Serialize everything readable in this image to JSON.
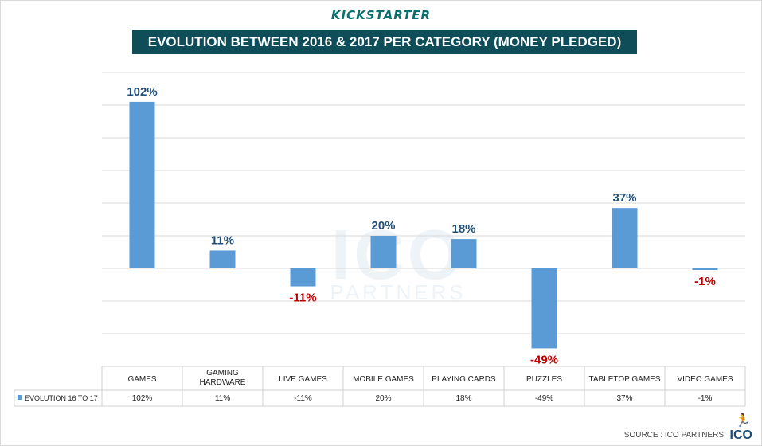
{
  "brand": "KICKSTARTER",
  "title": "EVOLUTION BETWEEN 2016 & 2017 PER CATEGORY (MONEY PLEDGED)",
  "watermark": {
    "big": "ICO",
    "small": "PARTNERS"
  },
  "source": "SOURCE : ICO PARTNERS",
  "logo_text": "ICO",
  "icons": {
    "logo": "running-man-icon",
    "legend": "legend-square-icon"
  },
  "colors": {
    "bar": "#5b9bd5",
    "positive_label": "#1f4e79",
    "negative_label": "#c00000",
    "title_bg": "#0f4d59"
  },
  "chart_data": {
    "type": "bar",
    "categories": [
      "GAMES",
      "GAMING HARDWARE",
      "LIVE GAMES",
      "MOBILE GAMES",
      "PLAYING CARDS",
      "PUZZLES",
      "TABLETOP GAMES",
      "VIDEO GAMES"
    ],
    "series": [
      {
        "name": "EVOLUTION 16 TO 17",
        "values": [
          102,
          11,
          -11,
          20,
          18,
          -49,
          37,
          -1
        ]
      }
    ],
    "data_labels": [
      "102%",
      "11%",
      "-11%",
      "20%",
      "18%",
      "-49%",
      "37%",
      "-1%"
    ],
    "ylim": [
      -60,
      120
    ],
    "gridlines": true,
    "legend": "table-bottom"
  }
}
